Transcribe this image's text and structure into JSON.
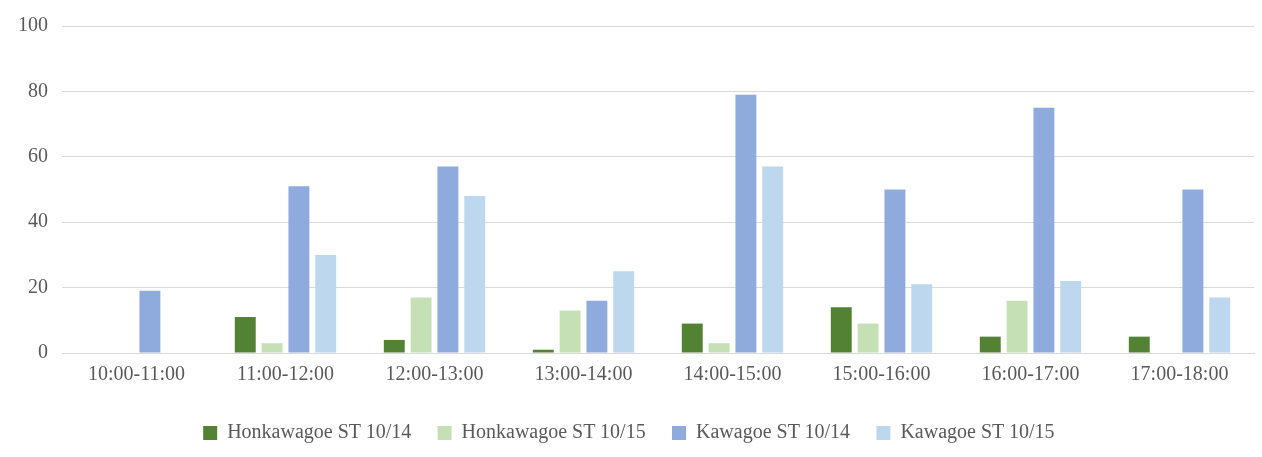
{
  "chart_data": {
    "type": "bar",
    "categories": [
      "10:00-11:00",
      "11:00-12:00",
      "12:00-13:00",
      "13:00-14:00",
      "14:00-15:00",
      "15:00-16:00",
      "16:00-17:00",
      "17:00-18:00"
    ],
    "series": [
      {
        "name": "Honkawagoe ST 10/14",
        "color": "#548235",
        "values": [
          0,
          11,
          4,
          1,
          9,
          14,
          5,
          5
        ]
      },
      {
        "name": "Honkawagoe ST 10/15",
        "color": "#c5e0b4",
        "values": [
          0,
          3,
          17,
          13,
          3,
          9,
          16,
          0
        ]
      },
      {
        "name": "Kawagoe ST 10/14",
        "color": "#8faadc",
        "values": [
          19,
          51,
          57,
          16,
          79,
          50,
          75,
          50
        ]
      },
      {
        "name": "Kawagoe ST 10/15",
        "color": "#bdd7ee",
        "values": [
          0,
          30,
          48,
          25,
          57,
          21,
          22,
          17
        ]
      }
    ],
    "ylim": [
      0,
      100
    ],
    "yticks": [
      0,
      20,
      40,
      60,
      80,
      100
    ],
    "grid": "y",
    "legend": "bottom"
  }
}
